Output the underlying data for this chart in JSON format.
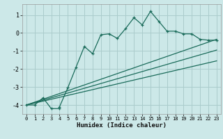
{
  "xlabel": "Humidex (Indice chaleur)",
  "bg_color": "#cce8e8",
  "grid_color": "#aacccc",
  "line_color": "#1a6b5a",
  "xlim": [
    -0.5,
    23.5
  ],
  "ylim": [
    -4.5,
    1.6
  ],
  "yticks": [
    -4,
    -3,
    -2,
    -1,
    0,
    1
  ],
  "xticks": [
    0,
    1,
    2,
    3,
    4,
    5,
    6,
    7,
    8,
    9,
    10,
    11,
    12,
    13,
    14,
    15,
    16,
    17,
    18,
    19,
    20,
    21,
    22,
    23
  ],
  "curve1_x": [
    0,
    1,
    2,
    3,
    4,
    4,
    5,
    6,
    7,
    8,
    9,
    10,
    11,
    12,
    13,
    14,
    15,
    16,
    17,
    18,
    19,
    20,
    21,
    22,
    23
  ],
  "curve1_y": [
    -4.0,
    -4.0,
    -3.6,
    -4.2,
    -4.2,
    -4.1,
    -3.05,
    -1.9,
    -0.75,
    -1.15,
    -0.1,
    -0.05,
    -0.3,
    0.25,
    0.85,
    0.45,
    1.2,
    0.65,
    0.1,
    0.1,
    -0.05,
    -0.05,
    -0.35,
    -0.4,
    -0.4
  ],
  "line1_x": [
    0,
    23
  ],
  "line1_y": [
    -4.0,
    -0.35
  ],
  "line2_x": [
    0,
    23
  ],
  "line2_y": [
    -4.0,
    -0.95
  ],
  "line3_x": [
    0,
    23
  ],
  "line3_y": [
    -4.0,
    -1.55
  ]
}
